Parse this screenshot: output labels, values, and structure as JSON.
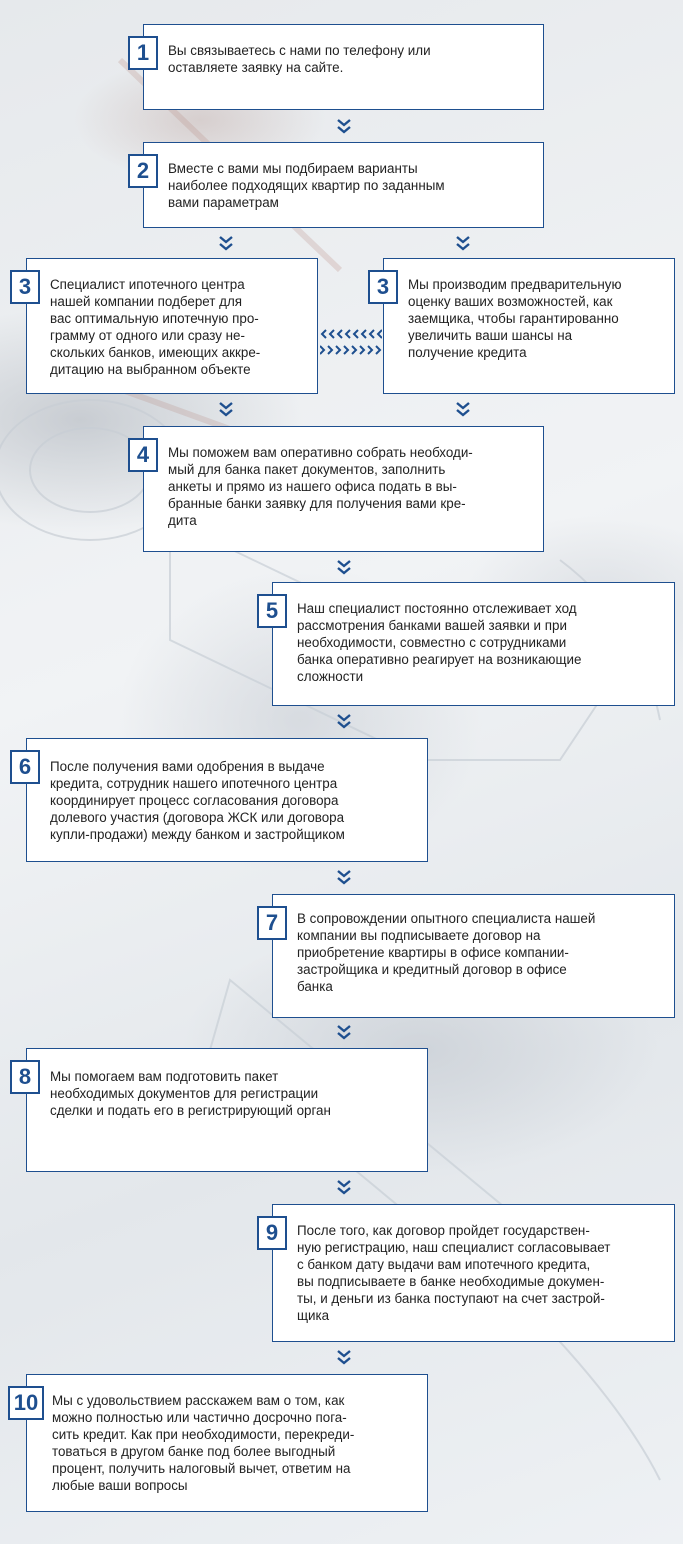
{
  "steps": [
    {
      "number": "1",
      "text": "Вы связываетесь с нами по телефону или\nоставляете заявку на сайте."
    },
    {
      "number": "2",
      "text": "Вместе с вами мы подбираем варианты\nнаиболее подходящих квартир по заданным\nвами параметрам"
    },
    {
      "number": "3",
      "text": "Специалист ипотечного центра\nнашей компании подберет для\nвас оптимальную ипотечную про-\nграмму от одного или сразу не-\nскольких банков, имеющих аккре-\nдитацию на выбранном объекте"
    },
    {
      "number": "3",
      "text": "Мы производим предварительную\nоценку ваших возможностей, как\nзаемщика, чтобы гарантированно\nувеличить ваши шансы на\nполучение кредита"
    },
    {
      "number": "4",
      "text": "Мы поможем вам оперативно собрать необходи-\nмый для банка пакет документов, заполнить\nанкеты и прямо из нашего офиса подать в вы-\nбранные банки заявку для получения вами кре-\nдита"
    },
    {
      "number": "5",
      "text": "Наш специалист постоянно отслеживает ход\nрассмотрения банками вашей заявки и при\nнеобходимости, совместно с сотрудниками\nбанка оперативно реагирует на  возникающие\nсложности"
    },
    {
      "number": "6",
      "text": "После получения вами одобрения в выдаче\nкредита, сотрудник нашего ипотечного центра\nкоординирует процесс согласования договора\nдолевого участия (договора ЖСК или договора\nкупли-продажи) между банком и застройщиком"
    },
    {
      "number": "7",
      "text": "В сопровождении опытного специалиста нашей\nкомпании вы подписываете договор на\nприобретение квартиры в офисе компании-\nзастройщика  и кредитный договор в офисе\nбанка"
    },
    {
      "number": "8",
      "text": "Мы помогаем вам подготовить пакет\nнеобходимых документов для регистрации\nсделки и подать его в регистрирующий орган"
    },
    {
      "number": "9",
      "text": "После того, как договор пройдет государствен-\nную регистрацию, наш специалист согласовывает\nс банком дату выдачи вам ипотечного кредита,\nвы подписываете в банке необходимые докумен-\nты, и деньги из банка поступают на счет застрой-\nщика"
    },
    {
      "number": "10",
      "text": "Мы с удовольствием расскажем вам о том, как\nможно полностью или частично досрочно пога-\nсить кредит. Как при необходимости, перекреди-\nтоваться в другом банке под более выгодный\nпроцент, получить налоговый вычет, ответим на\nлюбые ваши вопросы"
    }
  ],
  "colors": {
    "accent": "#1e4f8f",
    "text": "#222222",
    "box": "#ffffff"
  },
  "icons": {
    "down_arrow": "double-chevron-down-icon",
    "side_arrow": "chevron-row-icon"
  }
}
